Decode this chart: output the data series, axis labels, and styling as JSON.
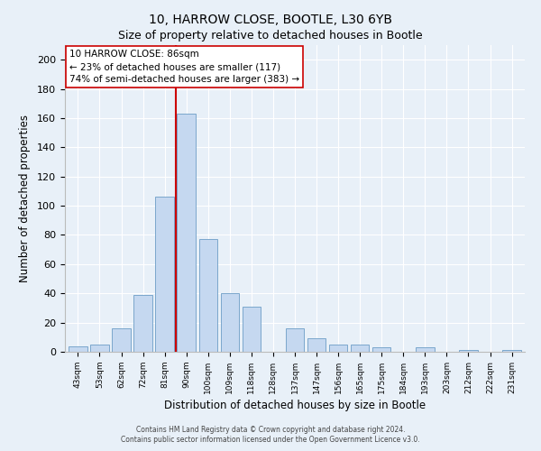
{
  "title": "10, HARROW CLOSE, BOOTLE, L30 6YB",
  "subtitle": "Size of property relative to detached houses in Bootle",
  "xlabel": "Distribution of detached houses by size in Bootle",
  "ylabel": "Number of detached properties",
  "bar_labels": [
    "43sqm",
    "53sqm",
    "62sqm",
    "72sqm",
    "81sqm",
    "90sqm",
    "100sqm",
    "109sqm",
    "118sqm",
    "128sqm",
    "137sqm",
    "147sqm",
    "156sqm",
    "165sqm",
    "175sqm",
    "184sqm",
    "193sqm",
    "203sqm",
    "212sqm",
    "222sqm",
    "231sqm"
  ],
  "bar_values": [
    4,
    5,
    16,
    39,
    106,
    163,
    77,
    40,
    31,
    0,
    16,
    9,
    5,
    5,
    3,
    0,
    3,
    0,
    1,
    0,
    1
  ],
  "bar_color": "#c5d8f0",
  "bar_edge_color": "#7ba7cc",
  "ref_line_x": 4.5,
  "reference_line_color": "#cc0000",
  "annotation_line1": "10 HARROW CLOSE: 86sqm",
  "annotation_line2": "← 23% of detached houses are smaller (117)",
  "annotation_line3": "74% of semi-detached houses are larger (383) →",
  "annotation_box_color": "#ffffff",
  "annotation_box_edge": "#cc0000",
  "ylim": [
    0,
    210
  ],
  "yticks": [
    0,
    20,
    40,
    60,
    80,
    100,
    120,
    140,
    160,
    180,
    200
  ],
  "footer1": "Contains HM Land Registry data © Crown copyright and database right 2024.",
  "footer2": "Contains public sector information licensed under the Open Government Licence v3.0.",
  "bg_color": "#e8f0f8",
  "plot_bg_color": "#e8f0f8",
  "grid_color": "#ffffff",
  "title_fontsize": 10,
  "subtitle_fontsize": 9
}
